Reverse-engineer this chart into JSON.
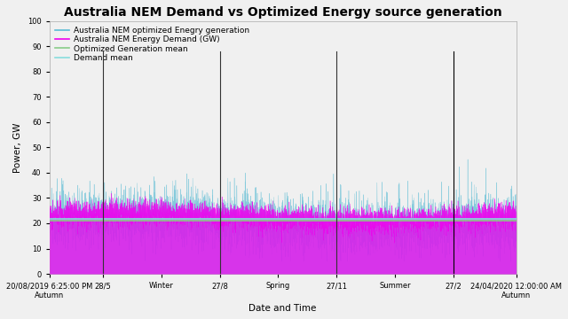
{
  "title": "Australia NEM Demand vs Optimized Energy source generation",
  "xlabel": "Date and Time",
  "ylabel": "Power, GW",
  "ylim": [
    0,
    100
  ],
  "yticks": [
    0,
    10,
    20,
    30,
    40,
    50,
    60,
    70,
    80,
    90,
    100
  ],
  "generation_color": "#5bbcd4",
  "demand_color": "#ee00ee",
  "gen_mean_color": "#88cc88",
  "demand_mean_color": "#88dddd",
  "generation_mean": 21.0,
  "demand_mean": 21.8,
  "vlines": [
    0.115,
    0.365,
    0.615,
    0.865
  ],
  "vline_colors": [
    "#333333",
    "#333333",
    "#333333",
    "#000000"
  ],
  "x_tick_positions": [
    0.0,
    0.115,
    0.24,
    0.365,
    0.49,
    0.615,
    0.74,
    0.865,
    1.0
  ],
  "x_tick_labels_top": [
    "20/08/2019 6:25:00 PM",
    "28/5",
    "Winter",
    "27/8",
    "Spring",
    "27/11",
    "Summer",
    "27/2",
    "24/04/2020 12:00:00 AM"
  ],
  "x_tick_labels_bot": [
    "Autumn",
    "",
    "",
    "",
    "",
    "",
    "",
    "",
    "Autumn"
  ],
  "legend_entries": [
    {
      "label": "Australia NEM optimized Enegry generation",
      "color": "#5bbcd4"
    },
    {
      "label": "Australia NEM Energy Demand (GW)",
      "color": "#ee00ee"
    },
    {
      "label": "Optimized Generation mean",
      "color": "#88cc88"
    },
    {
      "label": "Demand mean",
      "color": "#88dddd"
    }
  ],
  "background_color": "#f0f0f0",
  "plot_bg_color": "#f0f0f0",
  "title_fontsize": 10,
  "label_fontsize": 7.5,
  "tick_fontsize": 6,
  "legend_fontsize": 6.5
}
